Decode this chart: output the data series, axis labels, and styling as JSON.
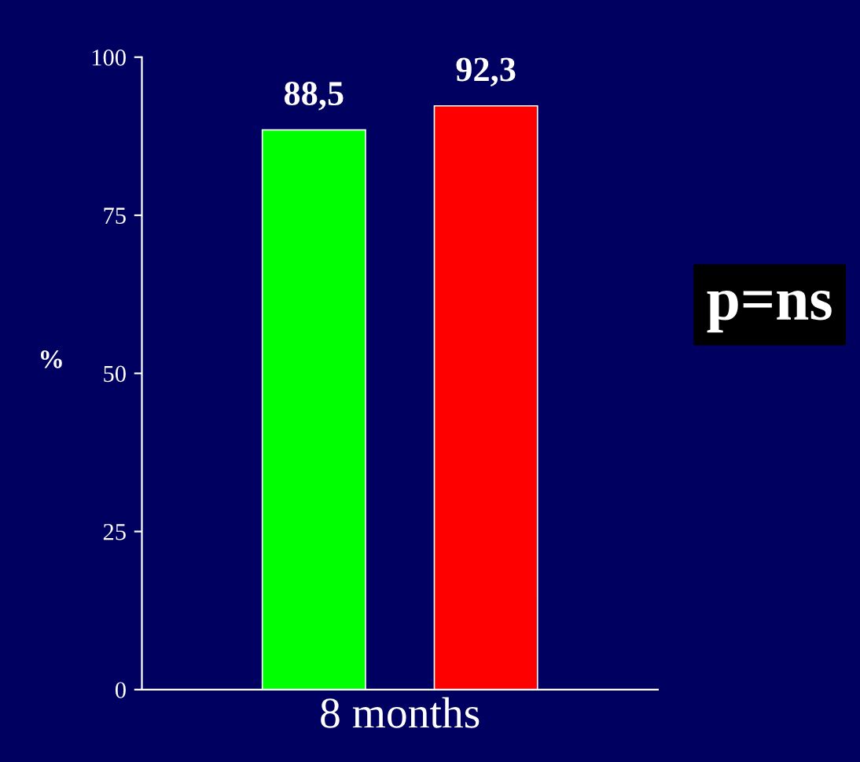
{
  "chart_data": {
    "type": "bar",
    "categories": [
      "8 months"
    ],
    "series": [
      {
        "color": "#00ff00",
        "values": [
          88.5
        ],
        "value_labels": [
          "88,5"
        ]
      },
      {
        "color": "#ff0000",
        "values": [
          92.3
        ],
        "value_labels": [
          "92,3"
        ]
      }
    ],
    "ylabel": "%",
    "ylim": [
      0,
      100
    ],
    "yticks": [
      0,
      25,
      50,
      75,
      100
    ],
    "grid": false,
    "legend": false,
    "annotations": [
      "p=ns"
    ]
  }
}
